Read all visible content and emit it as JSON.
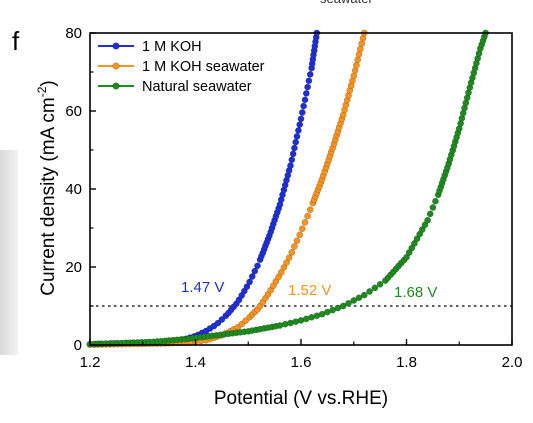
{
  "panel_label": "f",
  "top_fragment": "seawater",
  "chart_data": {
    "type": "line",
    "xlabel": "Potential (V vs.RHE)",
    "ylabel": "Current density (mA cm⁻²)",
    "ylabel_parts": [
      "Current density (mA cm",
      "-2",
      ")"
    ],
    "xlim": [
      1.2,
      2.0
    ],
    "ylim": [
      0,
      80
    ],
    "xticks": [
      1.2,
      1.4,
      1.6,
      1.8,
      2.0
    ],
    "xtick_labels": [
      "1.2",
      "1.4",
      "1.6",
      "1.8",
      "2.0"
    ],
    "yticks": [
      0,
      20,
      40,
      60,
      80
    ],
    "ytick_labels": [
      "0",
      "20",
      "40",
      "60",
      "80"
    ],
    "reference_line": {
      "y": 10,
      "style": "dotted"
    },
    "legend_position": "top-left",
    "series": [
      {
        "name": "1 M KOH",
        "color": "#1f2fd6",
        "x": [
          1.2,
          1.24,
          1.28,
          1.32,
          1.36,
          1.38,
          1.4,
          1.42,
          1.44,
          1.46,
          1.48,
          1.5,
          1.52,
          1.54,
          1.56,
          1.58,
          1.6,
          1.62,
          1.63
        ],
        "y": [
          0.2,
          0.35,
          0.5,
          0.7,
          1.0,
          1.5,
          2.3,
          3.6,
          5.3,
          7.8,
          11.0,
          15.5,
          21.0,
          28.0,
          36.0,
          46.0,
          58.0,
          71.0,
          80.0
        ]
      },
      {
        "name": "1 M KOH seawater",
        "color": "#f7931e",
        "x": [
          1.2,
          1.26,
          1.32,
          1.38,
          1.42,
          1.45,
          1.48,
          1.5,
          1.52,
          1.54,
          1.56,
          1.58,
          1.6,
          1.62,
          1.64,
          1.66,
          1.68,
          1.7,
          1.72
        ],
        "y": [
          0.1,
          0.2,
          0.35,
          0.6,
          1.2,
          2.5,
          4.5,
          6.8,
          9.5,
          13.5,
          18.0,
          23.0,
          29.0,
          35.5,
          42.5,
          50.5,
          59.0,
          69.0,
          80.0
        ]
      },
      {
        "name": "Natural seawater",
        "color": "#1f8a1f",
        "x": [
          1.2,
          1.26,
          1.32,
          1.38,
          1.44,
          1.5,
          1.56,
          1.6,
          1.64,
          1.68,
          1.72,
          1.76,
          1.8,
          1.84,
          1.86,
          1.88,
          1.9,
          1.92,
          1.94,
          1.95
        ],
        "y": [
          0.2,
          0.5,
          0.8,
          1.5,
          2.5,
          3.5,
          5.0,
          6.3,
          7.9,
          10.0,
          12.8,
          16.5,
          22.5,
          32.0,
          38.5,
          46.5,
          55.5,
          66.0,
          76.0,
          80.0
        ]
      }
    ],
    "annotations": [
      {
        "text": "1.47 V",
        "color": "#1f2fd6"
      },
      {
        "text": "1.52 V",
        "color": "#f7931e"
      },
      {
        "text": "1.68 V",
        "color": "#1f8a1f"
      }
    ]
  }
}
